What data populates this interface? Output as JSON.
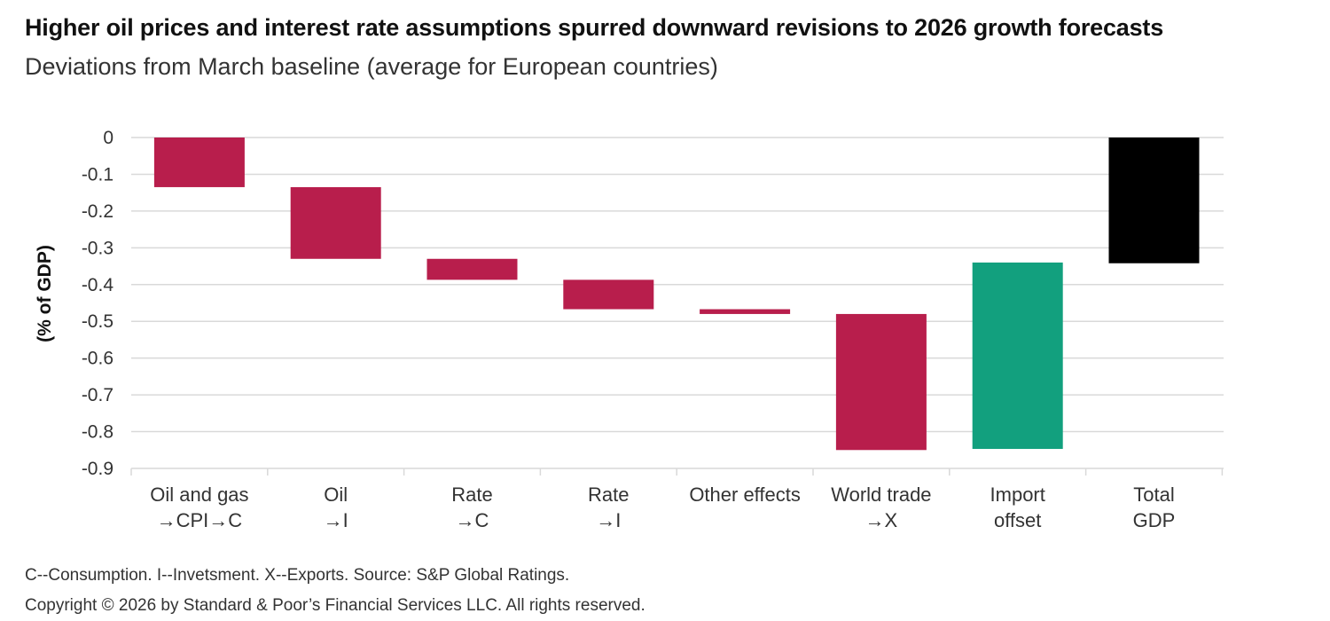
{
  "header": {
    "title": "Higher oil prices and interest rate assumptions spurred downward revisions to 2026 growth forecasts",
    "subtitle": "Deviations from March baseline (average for European countries)"
  },
  "footer": {
    "note": "C--Consumption. I--Invetsment. X--Exports. Source: S&P Global Ratings.",
    "copyright": "Copyright © 2026 by Standard & Poor’s Financial Services LLC. All rights reserved."
  },
  "chart_data": {
    "type": "bar",
    "subtype": "waterfall",
    "title": "Higher oil prices and interest rate assumptions spurred downward revisions to 2026 growth forecasts",
    "subtitle": "Deviations from March baseline (average for European countries)",
    "xlabel": "",
    "ylabel": "(% of GDP)",
    "ylim": [
      -0.9,
      0
    ],
    "yticks": [
      0,
      -0.1,
      -0.2,
      -0.3,
      -0.4,
      -0.5,
      -0.6,
      -0.7,
      -0.8,
      -0.9
    ],
    "ytick_labels": [
      "0",
      "-0.1",
      "-0.2",
      "-0.3",
      "-0.4",
      "-0.5",
      "-0.6",
      "-0.7",
      "-0.8",
      "-0.9"
    ],
    "grid": true,
    "categories": [
      [
        "Oil and gas",
        "→CPI→C"
      ],
      [
        "Oil",
        "→I"
      ],
      [
        "Rate",
        "→C"
      ],
      [
        "Rate",
        "→I"
      ],
      [
        "Other effects"
      ],
      [
        "World trade",
        "→X"
      ],
      [
        "Import",
        "offset"
      ],
      [
        "Total",
        "GDP"
      ]
    ],
    "bars": [
      {
        "start": 0,
        "end": -0.135,
        "kind": "decrease"
      },
      {
        "start": -0.135,
        "end": -0.33,
        "kind": "decrease"
      },
      {
        "start": -0.33,
        "end": -0.387,
        "kind": "decrease"
      },
      {
        "start": -0.387,
        "end": -0.467,
        "kind": "decrease"
      },
      {
        "start": -0.467,
        "end": -0.48,
        "kind": "decrease"
      },
      {
        "start": -0.48,
        "end": -0.85,
        "kind": "decrease"
      },
      {
        "start": -0.847,
        "end": -0.34,
        "kind": "increase"
      },
      {
        "start": 0,
        "end": -0.342,
        "kind": "total"
      }
    ],
    "colors": {
      "decrease": "#b81e4c",
      "increase": "#12a07e",
      "total": "#000000",
      "grid": "#d9d9d9"
    }
  }
}
